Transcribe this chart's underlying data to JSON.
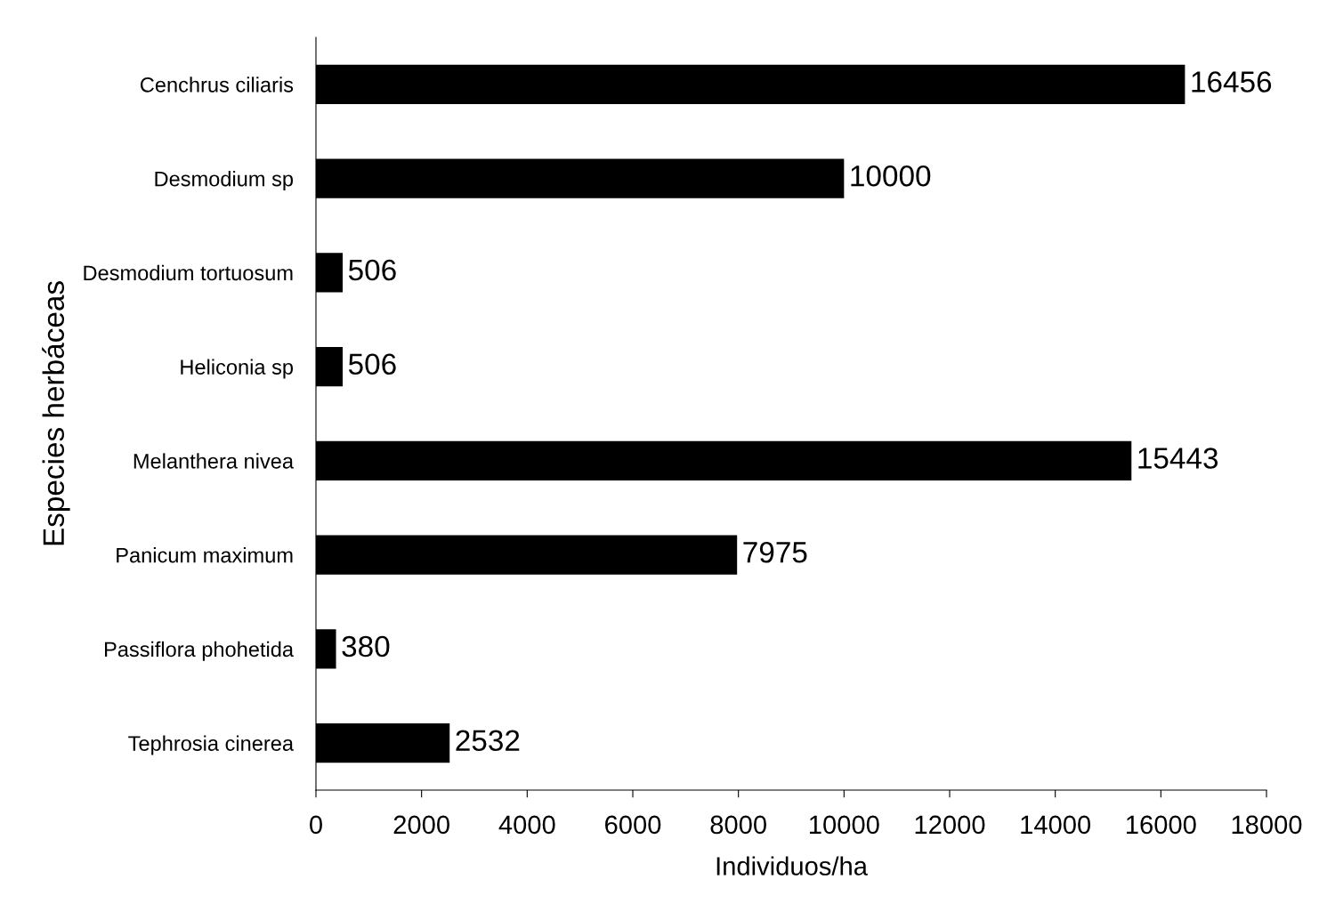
{
  "chart_data": {
    "type": "bar",
    "orientation": "horizontal",
    "xlabel": "Individuos/ha",
    "ylabel": "Especies herbáceas",
    "categories": [
      "Cenchrus ciliaris",
      "Desmodium sp",
      "Desmodium tortuosum",
      "Heliconia sp",
      "Melanthera nivea",
      "Panicum maximum",
      "Passiflora phohetida",
      "Tephrosia cinerea"
    ],
    "values": [
      16456,
      10000,
      506,
      506,
      15443,
      7975,
      380,
      2532
    ],
    "color": "#000000",
    "xlim": [
      0,
      18000
    ],
    "xticks": [
      0,
      2000,
      4000,
      6000,
      8000,
      10000,
      12000,
      14000,
      16000,
      18000
    ],
    "data_labels": true,
    "grid": false,
    "legend": false
  }
}
